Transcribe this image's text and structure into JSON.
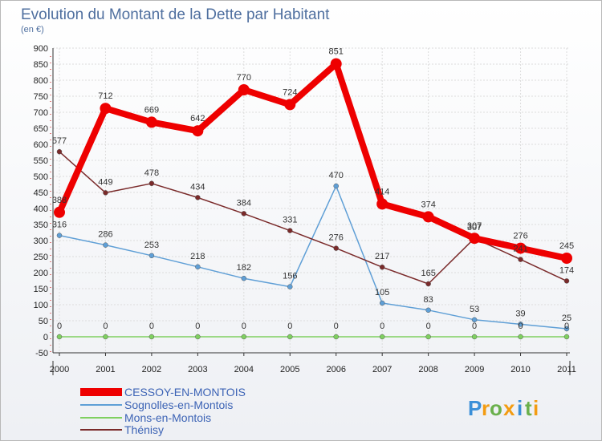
{
  "chart_data": {
    "type": "line",
    "title": "Evolution du Montant de la Dette par Habitant",
    "subtitle": "(en €)",
    "xlabel": "",
    "ylabel": "",
    "x": [
      "2000",
      "2001",
      "2002",
      "2003",
      "2004",
      "2005",
      "2006",
      "2007",
      "2008",
      "2009",
      "2010",
      "2011"
    ],
    "ylim": [
      -50,
      900
    ],
    "yticks": [
      -50,
      0,
      50,
      100,
      150,
      200,
      250,
      300,
      350,
      400,
      450,
      500,
      550,
      600,
      650,
      700,
      750,
      800,
      850,
      900
    ],
    "grid": true,
    "legend_position": "bottom-left",
    "series": [
      {
        "name": "CESSOY-EN-MONTOIS",
        "color": "#ee0000",
        "values": [
          388,
          712,
          669,
          642,
          770,
          724,
          851,
          414,
          374,
          307,
          276,
          245
        ],
        "labels": [
          "388",
          "712",
          "669",
          "642",
          "770",
          "724",
          "851",
          "414",
          "374",
          "307",
          "276",
          "245"
        ]
      },
      {
        "name": "Sognolles-en-Montois",
        "color": "#5f9fd6",
        "values": [
          316,
          286,
          253,
          218,
          182,
          156,
          470,
          105,
          83,
          53,
          39,
          25
        ],
        "labels": [
          "316",
          "286",
          "253",
          "218",
          "182",
          "156",
          "470",
          "105",
          "83",
          "53",
          "39",
          "25"
        ]
      },
      {
        "name": "Mons-en-Montois",
        "color": "#7fd060",
        "values": [
          0,
          0,
          0,
          0,
          0,
          0,
          0,
          0,
          0,
          0,
          0,
          0
        ],
        "labels": [
          "0",
          "0",
          "0",
          "0",
          "0",
          "0",
          "0",
          "0",
          "0",
          "0",
          "0",
          "0"
        ]
      },
      {
        "name": "Thénisy",
        "color": "#7a2a2a",
        "values": [
          577,
          449,
          478,
          434,
          384,
          331,
          276,
          217,
          165,
          307,
          241,
          174
        ],
        "labels": [
          "577",
          "449",
          "478",
          "434",
          "384",
          "331",
          "276",
          "217",
          "165",
          "307",
          "241",
          "174"
        ]
      }
    ]
  },
  "logo": {
    "letters": [
      "P",
      "r",
      "o",
      "x",
      "i",
      "t",
      "i"
    ],
    "colors": [
      "#3a8fd8",
      "#f39c12",
      "#6ab04c",
      "#f39c12",
      "#3a8fd8",
      "#6ab04c",
      "#f39c12"
    ]
  }
}
